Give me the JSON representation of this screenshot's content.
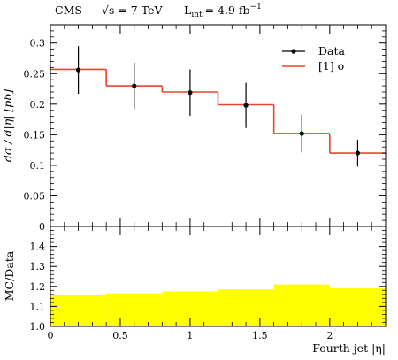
{
  "chart_data": [
    {
      "type": "line",
      "header": {
        "experiment": "CMS",
        "energy": "√s = 7 TeV",
        "lumi": "L",
        "lumi_sub": "int",
        "lumi_value": "= 4.9 fb",
        "lumi_sup": "−1"
      },
      "ylabel": "dσ / d|η| [pb]",
      "xlim": [
        0,
        2.4
      ],
      "ylim": [
        0,
        0.33
      ],
      "yticks": [
        {
          "value": 0,
          "label": "0"
        },
        {
          "value": 0.05,
          "label": "0.05"
        },
        {
          "value": 0.1,
          "label": "0.1"
        },
        {
          "value": 0.15,
          "label": "0.15"
        },
        {
          "value": 0.2,
          "label": "0.2"
        },
        {
          "value": 0.25,
          "label": "0.25"
        },
        {
          "value": 0.3,
          "label": "0.3"
        }
      ],
      "legend": {
        "position": "top-right",
        "entries": [
          {
            "label": "Data",
            "kind": "marker"
          },
          {
            "label": "[1] o",
            "kind": "line"
          }
        ]
      },
      "series": [
        {
          "name": "Data",
          "color": "#000000",
          "x": [
            0.2,
            0.6,
            1.0,
            1.4,
            1.8,
            2.2
          ],
          "y": [
            0.256,
            0.23,
            0.219,
            0.198,
            0.152,
            0.12
          ],
          "yerr": [
            0.039,
            0.038,
            0.038,
            0.037,
            0.031,
            0.022
          ]
        },
        {
          "name": "[1] o",
          "color": "#e8452b",
          "bin_edges": [
            0,
            0.4,
            0.8,
            1.2,
            1.6,
            2.0,
            2.4
          ],
          "values": [
            0.257,
            0.23,
            0.22,
            0.199,
            0.152,
            0.12
          ]
        }
      ]
    },
    {
      "type": "area",
      "ylabel": "MC/Data",
      "xlabel": "Fourth jet |η|",
      "xlim": [
        0,
        2.4
      ],
      "ylim": [
        1.0,
        1.5
      ],
      "yticks": [
        {
          "value": 1.0,
          "label": "1.0"
        },
        {
          "value": 1.1,
          "label": "1.1"
        },
        {
          "value": 1.2,
          "label": "1.2"
        },
        {
          "value": 1.3,
          "label": "1.3"
        },
        {
          "value": 1.4,
          "label": "1.4"
        }
      ],
      "xticks": [
        {
          "value": 0,
          "label": "0"
        },
        {
          "value": 0.5,
          "label": "0.5"
        },
        {
          "value": 1.0,
          "label": "1"
        },
        {
          "value": 1.5,
          "label": "1.5"
        },
        {
          "value": 2.0,
          "label": "2"
        }
      ],
      "series": [
        {
          "name": "[1] o",
          "color": "#ffff00",
          "bin_edges": [
            0,
            0.4,
            0.8,
            1.2,
            1.6,
            2.0,
            2.4
          ],
          "values": [
            1.155,
            1.165,
            1.175,
            1.185,
            1.21,
            1.19
          ]
        }
      ]
    }
  ]
}
